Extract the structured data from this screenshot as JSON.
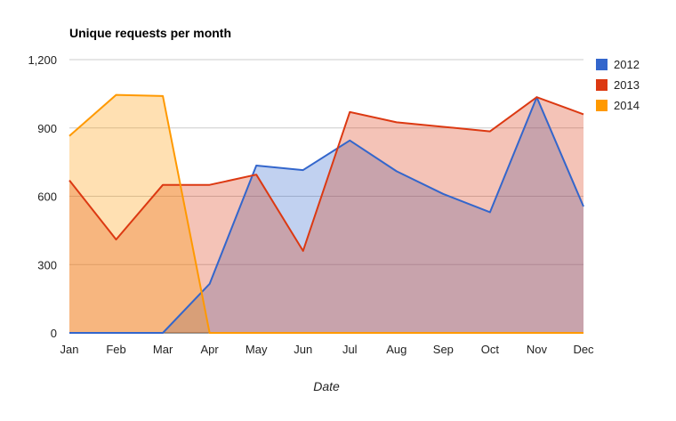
{
  "chart_data": {
    "type": "area",
    "title": "Unique requests per month",
    "xlabel": "Date",
    "ylabel": "",
    "categories": [
      "Jan",
      "Feb",
      "Mar",
      "Apr",
      "May",
      "Jun",
      "Jul",
      "Aug",
      "Sep",
      "Oct",
      "Nov",
      "Dec"
    ],
    "ylim": [
      0,
      1200
    ],
    "yticks": [
      0,
      300,
      600,
      900,
      1200
    ],
    "ytick_labels": [
      "0",
      "300",
      "600",
      "900",
      "1,200"
    ],
    "grid": true,
    "legend_position": "right",
    "series": [
      {
        "name": "2012",
        "color": "#3366cc",
        "values": [
          0,
          0,
          0,
          215,
          735,
          715,
          845,
          710,
          610,
          530,
          1035,
          555
        ]
      },
      {
        "name": "2013",
        "color": "#dc3912",
        "values": [
          670,
          410,
          650,
          650,
          695,
          360,
          970,
          925,
          905,
          885,
          1035,
          960
        ]
      },
      {
        "name": "2014",
        "color": "#ff9900",
        "values": [
          865,
          1045,
          1040,
          0,
          0,
          0,
          0,
          0,
          0,
          0,
          0,
          0
        ]
      }
    ]
  }
}
